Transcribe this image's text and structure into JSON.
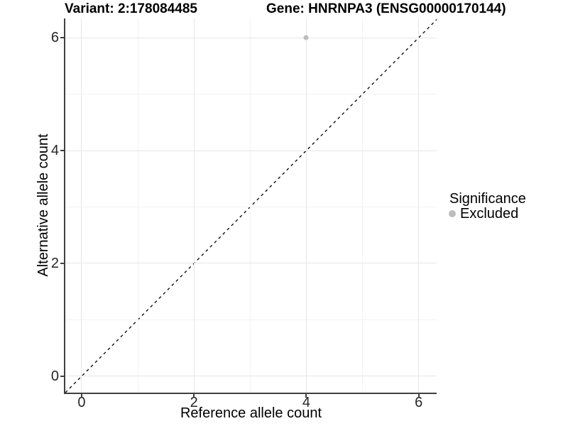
{
  "chart_data": {
    "type": "scatter",
    "title_left": "Variant: 2:178084485",
    "title_right": "Gene: HNRNPA3 (ENSG00000170144)",
    "xlabel": "Reference allele count",
    "ylabel": "Alternative allele count",
    "xlim": [
      -0.29,
      6.32
    ],
    "ylim": [
      -0.29,
      6.34
    ],
    "x_major_ticks": [
      0,
      2,
      4,
      6
    ],
    "x_minor_ticks": [
      1,
      3,
      5
    ],
    "y_major_ticks": [
      0,
      2,
      4,
      6
    ],
    "y_minor_ticks": [
      1,
      3,
      5
    ],
    "grid": true,
    "legend_position": "right",
    "legend_title": "Significance",
    "series": [
      {
        "name": "Excluded",
        "color": "#bdbdbd",
        "points": [
          {
            "x": 4,
            "y": 6
          }
        ]
      }
    ],
    "reference_line": {
      "type": "identity",
      "slope": 1,
      "intercept": 0,
      "style": "dashed",
      "color": "#000000"
    },
    "colors": {
      "major_grid": "#e6e6e6",
      "minor_grid": "#f2f2f2",
      "axis_line": "#404040",
      "tick_label": "#262626",
      "background": "#ffffff"
    }
  }
}
